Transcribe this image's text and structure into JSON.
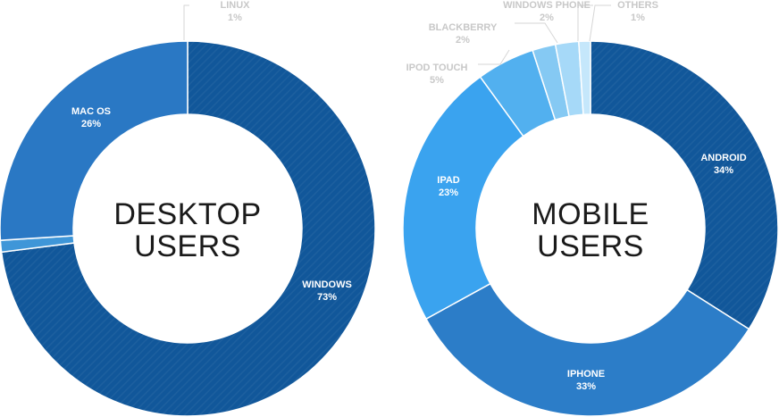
{
  "chart_data": [
    {
      "type": "pie",
      "title": "DESKTOP USERS",
      "title_lines": [
        "DESKTOP",
        "USERS"
      ],
      "slices": [
        {
          "label": "WINDOWS",
          "pct_label": "73%",
          "value": 73,
          "color": "#11579a"
        },
        {
          "label": "LINUX",
          "pct_label": "1%",
          "value": 1,
          "color": "#3f96d8"
        },
        {
          "label": "MAC OS",
          "pct_label": "26%",
          "value": 26,
          "color": "#2a78c4"
        }
      ]
    },
    {
      "type": "pie",
      "title": "MOBILE USERS",
      "title_lines": [
        "MOBILE",
        "USERS"
      ],
      "slices": [
        {
          "label": "ANDROID",
          "pct_label": "34%",
          "value": 34,
          "color": "#11579a"
        },
        {
          "label": "IPHONE",
          "pct_label": "33%",
          "value": 33,
          "color": "#2c7dc8"
        },
        {
          "label": "IPAD",
          "pct_label": "23%",
          "value": 23,
          "color": "#3aa3ef"
        },
        {
          "label": "IPOD TOUCH",
          "pct_label": "5%",
          "value": 5,
          "color": "#52b0ef"
        },
        {
          "label": "BLACKBERRY",
          "pct_label": "2%",
          "value": 2,
          "color": "#85c9f3"
        },
        {
          "label": "WINDOWS PHONE",
          "pct_label": "2%",
          "value": 2,
          "color": "#a6d9f8"
        },
        {
          "label": "OTHERS",
          "pct_label": "1%",
          "value": 1,
          "color": "#c5e7fb"
        }
      ]
    }
  ]
}
